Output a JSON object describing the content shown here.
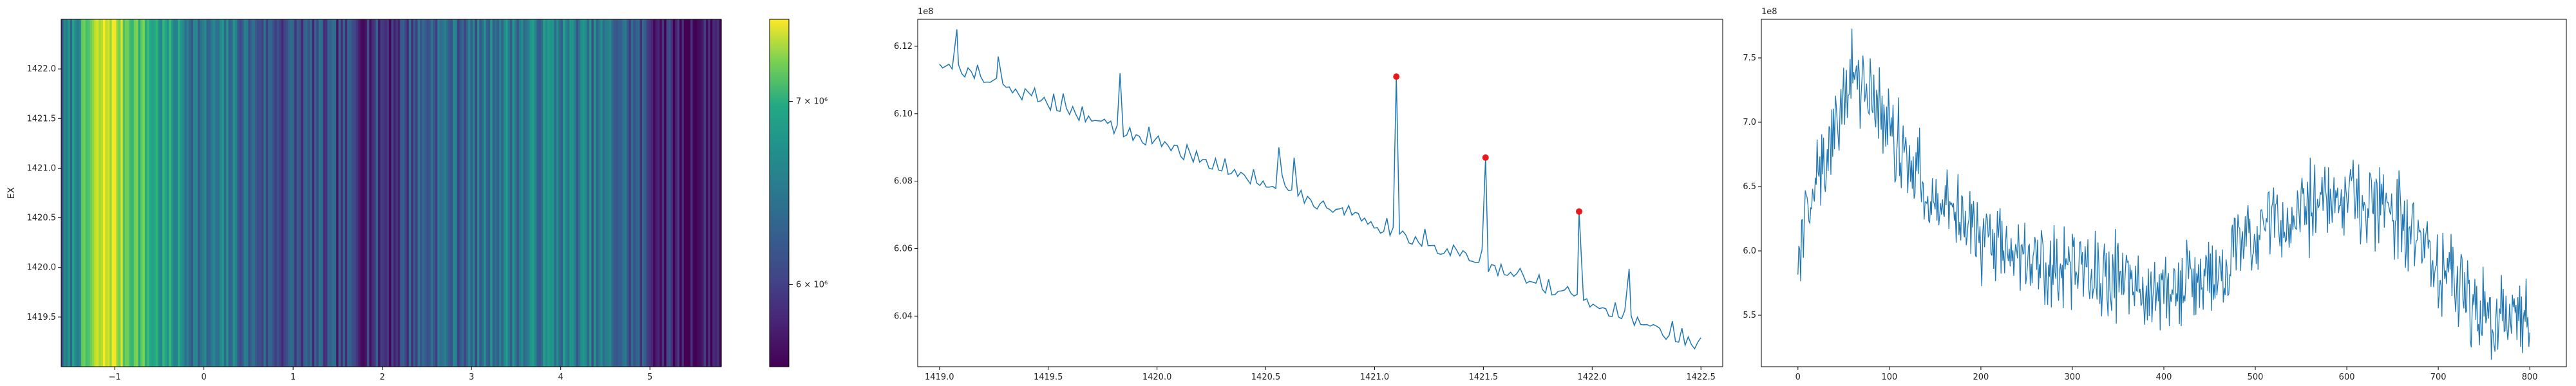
{
  "chart_data": [
    {
      "type": "heatmap",
      "ylabel": "EX",
      "xlim": [
        -1.6,
        5.8
      ],
      "ylim": [
        1419.0,
        1422.5
      ],
      "xticks": [
        -1,
        0,
        1,
        2,
        3,
        4,
        5
      ],
      "yticks": [
        1419.5,
        1420.0,
        1420.5,
        1421.0,
        1421.5,
        1422.0
      ],
      "xticklabels": [
        "−1",
        "0",
        "1",
        "2",
        "3",
        "4",
        "5"
      ],
      "yticklabels": [
        "1419.5",
        "1420.0",
        "1420.5",
        "1421.0",
        "1421.5",
        "1422.0"
      ],
      "colormap": "viridis",
      "colorbar": {
        "min": 5600000,
        "max": 7500000,
        "scale": "log",
        "ticks": [
          6000000,
          7000000
        ],
        "ticklabels": [
          "6 × 10⁶",
          "7 × 10⁶"
        ]
      },
      "column_profile": [
        {
          "x": -1.6,
          "value": 6.1
        },
        {
          "x": -1.4,
          "value": 6.6
        },
        {
          "x": -1.2,
          "value": 7.2
        },
        {
          "x": -1.05,
          "value": 7.4
        },
        {
          "x": -0.9,
          "value": 7.1
        },
        {
          "x": -0.7,
          "value": 6.9
        },
        {
          "x": -0.5,
          "value": 6.6
        },
        {
          "x": -0.3,
          "value": 6.5
        },
        {
          "x": 0.0,
          "value": 6.2
        },
        {
          "x": 0.3,
          "value": 6.3
        },
        {
          "x": 0.6,
          "value": 6.1
        },
        {
          "x": 0.9,
          "value": 6.0
        },
        {
          "x": 1.2,
          "value": 6.0
        },
        {
          "x": 1.5,
          "value": 5.95
        },
        {
          "x": 1.8,
          "value": 5.9
        },
        {
          "x": 2.1,
          "value": 5.85
        },
        {
          "x": 2.4,
          "value": 6.1
        },
        {
          "x": 2.7,
          "value": 6.2
        },
        {
          "x": 3.0,
          "value": 6.15
        },
        {
          "x": 3.3,
          "value": 6.35
        },
        {
          "x": 3.6,
          "value": 6.3
        },
        {
          "x": 3.9,
          "value": 6.4
        },
        {
          "x": 4.2,
          "value": 6.3
        },
        {
          "x": 4.5,
          "value": 6.25
        },
        {
          "x": 4.8,
          "value": 6.1
        },
        {
          "x": 5.1,
          "value": 5.8
        },
        {
          "x": 5.4,
          "value": 5.65
        },
        {
          "x": 5.8,
          "value": 5.8
        }
      ]
    },
    {
      "type": "line",
      "xlim": [
        1418.9,
        1422.6
      ],
      "ylim": [
        6.025,
        6.128
      ],
      "y_offset_label": "1e8",
      "xticks": [
        1419.0,
        1419.5,
        1420.0,
        1420.5,
        1421.0,
        1421.5,
        1422.0,
        1422.5
      ],
      "xticklabels": [
        "1419.0",
        "1419.5",
        "1420.0",
        "1420.5",
        "1421.0",
        "1421.5",
        "1422.0",
        "1422.5"
      ],
      "yticks": [
        6.04,
        6.06,
        6.08,
        6.1,
        6.12
      ],
      "yticklabels": [
        "6.04",
        "6.06",
        "6.08",
        "6.10",
        "6.12"
      ],
      "line_color": "#1f77b4",
      "marker_color": "#e41a1c",
      "trend": {
        "x_start": 1419.0,
        "y_start": 6.115,
        "x_end": 1422.5,
        "y_end": 6.031
      },
      "peaks": [
        {
          "x": 1421.1,
          "y": 6.111
        },
        {
          "x": 1421.51,
          "y": 6.087
        },
        {
          "x": 1421.94,
          "y": 6.071
        }
      ],
      "extra_spikes": [
        {
          "x": 1419.08,
          "y": 6.125
        },
        {
          "x": 1419.27,
          "y": 6.117
        },
        {
          "x": 1419.83,
          "y": 6.112
        },
        {
          "x": 1420.56,
          "y": 6.09
        },
        {
          "x": 1420.63,
          "y": 6.087
        },
        {
          "x": 1420.86,
          "y": 6.07
        },
        {
          "x": 1422.17,
          "y": 6.054
        }
      ]
    },
    {
      "type": "line",
      "xlim": [
        -40,
        840
      ],
      "ylim": [
        5.1,
        7.8
      ],
      "y_offset_label": "1e8",
      "xticks": [
        0,
        100,
        200,
        300,
        400,
        500,
        600,
        700,
        800
      ],
      "xticklabels": [
        "0",
        "100",
        "200",
        "300",
        "400",
        "500",
        "600",
        "700",
        "800"
      ],
      "yticks": [
        5.5,
        6.0,
        6.5,
        7.0,
        7.5
      ],
      "yticklabels": [
        "5.5",
        "6.0",
        "6.5",
        "7.0",
        "7.5"
      ],
      "line_color": "#1f77b4",
      "envelope": [
        {
          "x": 0,
          "y": 6.0
        },
        {
          "x": 30,
          "y": 6.7
        },
        {
          "x": 60,
          "y": 7.4
        },
        {
          "x": 90,
          "y": 7.1
        },
        {
          "x": 130,
          "y": 6.6
        },
        {
          "x": 200,
          "y": 6.1
        },
        {
          "x": 300,
          "y": 5.85
        },
        {
          "x": 400,
          "y": 5.7
        },
        {
          "x": 460,
          "y": 5.85
        },
        {
          "x": 520,
          "y": 6.2
        },
        {
          "x": 600,
          "y": 6.45
        },
        {
          "x": 650,
          "y": 6.3
        },
        {
          "x": 700,
          "y": 5.9
        },
        {
          "x": 760,
          "y": 5.45
        },
        {
          "x": 800,
          "y": 5.5
        }
      ],
      "n_points": 801
    }
  ]
}
